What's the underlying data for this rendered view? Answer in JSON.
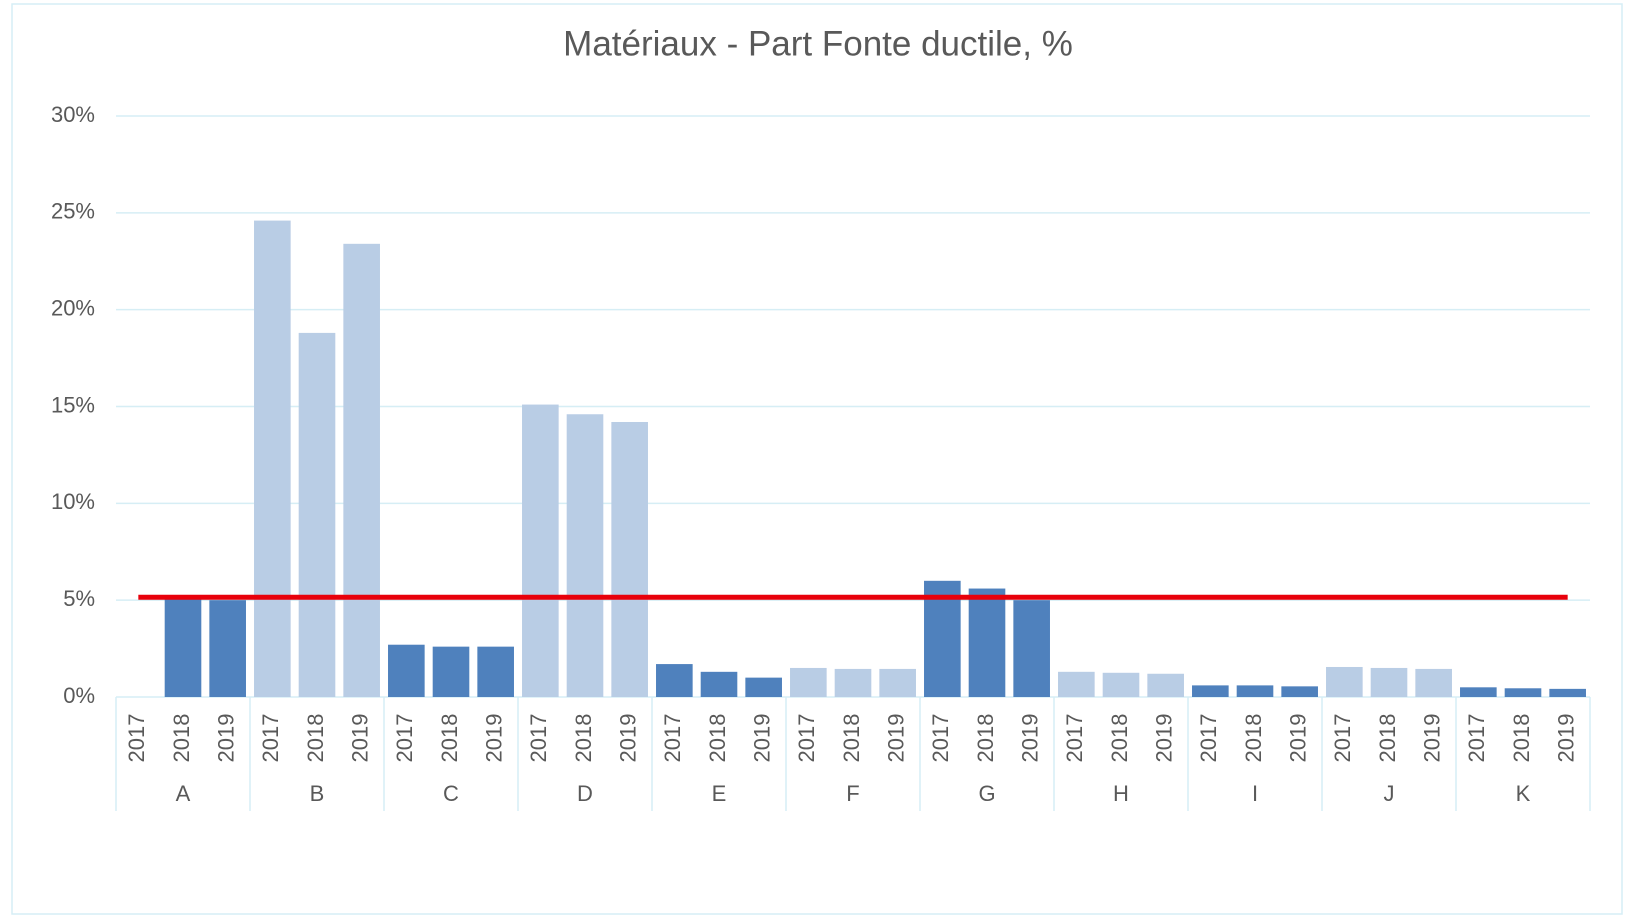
{
  "chart_data": {
    "type": "bar",
    "title": "Matériaux - Part Fonte ductile, %",
    "subcategories": [
      "2017",
      "2018",
      "2019"
    ],
    "groups": [
      {
        "label": "A",
        "color": "#4f81bd",
        "values": [
          0,
          5.2,
          5.0
        ]
      },
      {
        "label": "B",
        "color": "#b9cde5",
        "values": [
          24.6,
          18.8,
          23.4
        ]
      },
      {
        "label": "C",
        "color": "#4f81bd",
        "values": [
          2.7,
          2.6,
          2.6
        ]
      },
      {
        "label": "D",
        "color": "#b9cde5",
        "values": [
          15.1,
          14.6,
          14.2
        ]
      },
      {
        "label": "E",
        "color": "#4f81bd",
        "values": [
          1.7,
          1.3,
          1.0
        ]
      },
      {
        "label": "F",
        "color": "#b9cde5",
        "values": [
          1.5,
          1.45,
          1.45
        ]
      },
      {
        "label": "G",
        "color": "#4f81bd",
        "values": [
          6.0,
          5.6,
          5.0
        ]
      },
      {
        "label": "H",
        "color": "#b9cde5",
        "values": [
          1.3,
          1.25,
          1.2
        ]
      },
      {
        "label": "I",
        "color": "#4f81bd",
        "values": [
          0.6,
          0.6,
          0.55
        ]
      },
      {
        "label": "J",
        "color": "#b9cde5",
        "values": [
          1.55,
          1.5,
          1.45
        ]
      },
      {
        "label": "K",
        "color": "#4f81bd",
        "values": [
          0.5,
          0.45,
          0.42
        ]
      }
    ],
    "reference_line": {
      "value": 5.15,
      "color": "#e8000b"
    },
    "ylim": [
      0,
      30
    ],
    "yticks": [
      {
        "value": 0,
        "label": "0%"
      },
      {
        "value": 5,
        "label": "5%"
      },
      {
        "value": 10,
        "label": "10%"
      },
      {
        "value": 15,
        "label": "15%"
      },
      {
        "value": 20,
        "label": "20%"
      },
      {
        "value": 25,
        "label": "25%"
      },
      {
        "value": 30,
        "label": "30%"
      }
    ],
    "grid": true
  }
}
